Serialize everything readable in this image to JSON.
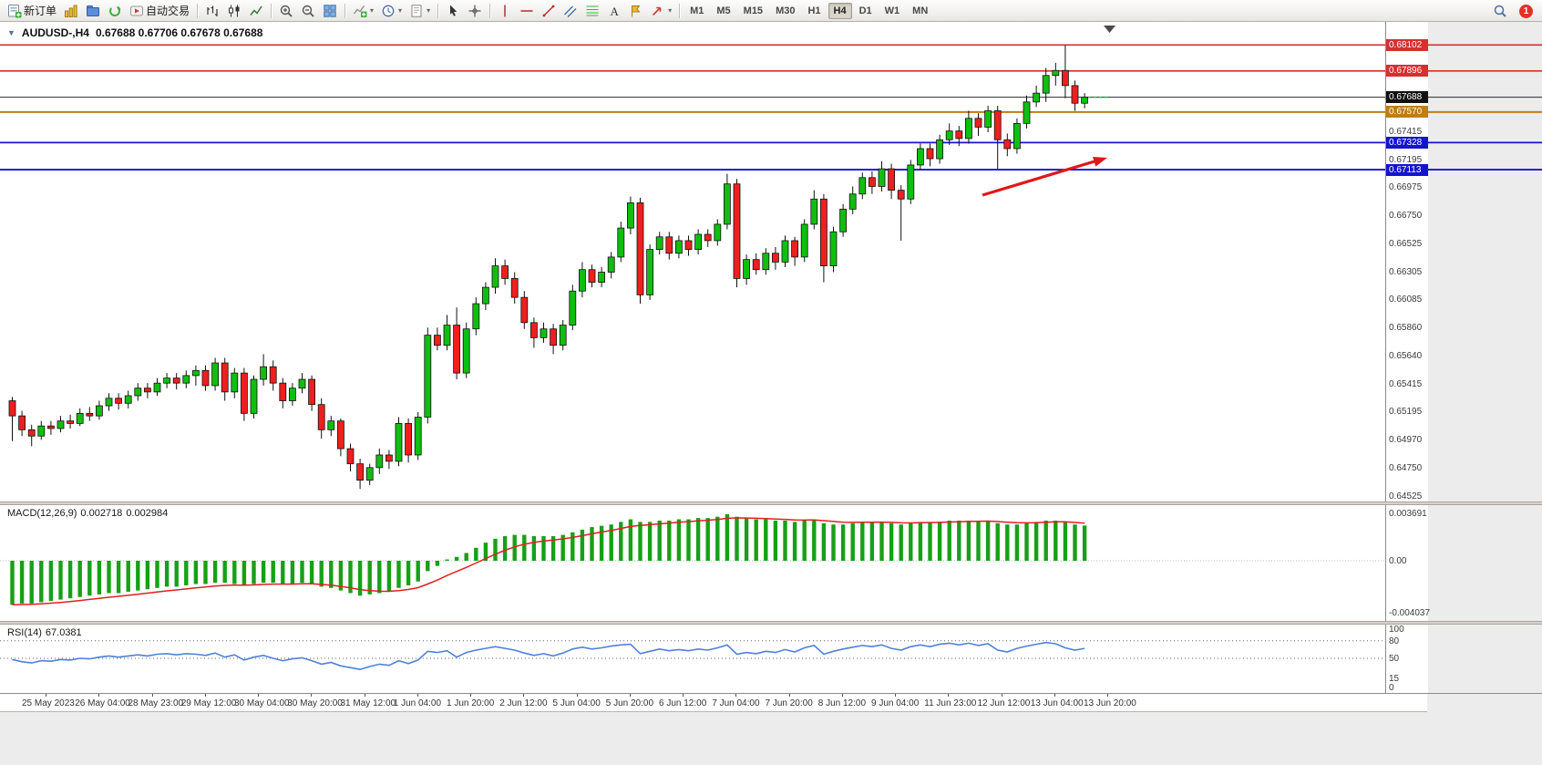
{
  "window": {
    "app": "MetaTrader",
    "chart_title": "AUDUSD-,H4"
  },
  "toolbar": {
    "buttons": [
      {
        "name": "new-order",
        "label": "新订单",
        "icon": "new-order-icon"
      },
      {
        "name": "charts",
        "icon": "charts-icon"
      },
      {
        "name": "profiles",
        "icon": "profiles-icon"
      },
      {
        "name": "refresh",
        "icon": "refresh-icon"
      },
      {
        "name": "auto-trading",
        "label": "自动交易",
        "icon": "autotrading-icon"
      },
      {
        "sep": true
      },
      {
        "name": "bar-chart",
        "icon": "bar-chart-icon"
      },
      {
        "name": "candlestick-chart",
        "icon": "candle-chart-icon"
      },
      {
        "name": "line-chart",
        "icon": "line-chart-icon"
      },
      {
        "sep": true
      },
      {
        "name": "zoom-in",
        "icon": "zoom-in-icon"
      },
      {
        "name": "zoom-out",
        "icon": "zoom-out-icon"
      },
      {
        "name": "tile-windows",
        "icon": "tile-windows-icon"
      },
      {
        "sep": true
      },
      {
        "name": "indicators",
        "icon": "indicators-icon",
        "dropdown": true
      },
      {
        "name": "periods",
        "icon": "clock-icon",
        "dropdown": true
      },
      {
        "name": "templates",
        "icon": "template-icon",
        "dropdown": true
      },
      {
        "sep": true
      },
      {
        "name": "cursor",
        "icon": "cursor-icon"
      },
      {
        "name": "crosshair",
        "icon": "crosshair-icon"
      },
      {
        "sep": true
      },
      {
        "name": "vertical-line",
        "icon": "vline-icon"
      },
      {
        "name": "horizontal-line",
        "icon": "hline-icon"
      },
      {
        "name": "trendline",
        "icon": "trendline-icon"
      },
      {
        "name": "equidistant-channel",
        "icon": "channel-icon"
      },
      {
        "name": "fibonacci",
        "icon": "fibo-icon"
      },
      {
        "name": "text",
        "icon": "text-icon"
      },
      {
        "name": "text-label",
        "icon": "label-icon"
      },
      {
        "name": "arrows",
        "icon": "shapes-icon",
        "dropdown": true
      },
      {
        "sep": true
      }
    ],
    "timeframes": [
      "M1",
      "M5",
      "M15",
      "M30",
      "H1",
      "H4",
      "D1",
      "W1",
      "MN"
    ],
    "active_timeframe": "H4",
    "notification_count": "1"
  },
  "chart": {
    "symbol": "AUDUSD-,H4",
    "ohlc_text": "0.67688 0.67706 0.67678 0.67688",
    "y_axis_labels": [
      "0.67415",
      "0.67195",
      "0.66975",
      "0.66750",
      "0.66525",
      "0.66305",
      "0.66085",
      "0.65860",
      "0.65640",
      "0.65415",
      "0.65195",
      "0.64970",
      "0.64750",
      "0.64525"
    ],
    "price_lines": [
      {
        "label": "0.68102",
        "price": 0.68102,
        "color": "#d62f2f",
        "width": 1.6
      },
      {
        "label": "0.67896",
        "price": 0.67896,
        "color": "#d62f2f",
        "width": 1.6
      },
      {
        "label": "0.67570",
        "price": 0.6757,
        "color": "#c07d10",
        "width": 2
      },
      {
        "label": "0.67328",
        "price": 0.67328,
        "color": "#1414cf",
        "width": 1.8
      },
      {
        "label": "0.67113",
        "price": 0.67113,
        "color": "#1414cf",
        "width": 1.8
      }
    ],
    "current_price": {
      "label": "0.67688",
      "price": 0.67688,
      "color": "#111111"
    },
    "x_axis_labels": [
      "25 May 2023",
      "26 May 04:00",
      "28 May 23:00",
      "29 May 12:00",
      "30 May 04:00",
      "30 May 20:00",
      "31 May 12:00",
      "1 Jun 04:00",
      "1 Jun 20:00",
      "2 Jun 12:00",
      "5 Jun 04:00",
      "5 Jun 20:00",
      "6 Jun 12:00",
      "7 Jun 04:00",
      "7 Jun 20:00",
      "8 Jun 12:00",
      "9 Jun 04:00",
      "11 Jun 23:00",
      "12 Jun 12:00",
      "13 Jun 04:00",
      "13 Jun 20:00"
    ]
  },
  "annotation": {
    "type": "arrow",
    "color": "#e01818"
  },
  "chart_data": {
    "type": "candlestick",
    "symbol": "AUDUSD",
    "timeframe": "H4",
    "y_range": [
      0.6451,
      0.68155
    ],
    "bull_color": "#0fbf0f",
    "bear_color": "#ef1f1f",
    "candles": [
      [
        0.6528,
        0.6531,
        0.6496,
        0.6516
      ],
      [
        0.6516,
        0.652,
        0.65,
        0.6505
      ],
      [
        0.6505,
        0.6509,
        0.6492,
        0.65
      ],
      [
        0.65,
        0.6512,
        0.6497,
        0.6508
      ],
      [
        0.6508,
        0.6512,
        0.6501,
        0.6506
      ],
      [
        0.6506,
        0.6516,
        0.6503,
        0.6512
      ],
      [
        0.6512,
        0.6517,
        0.6506,
        0.651
      ],
      [
        0.651,
        0.6522,
        0.6508,
        0.6518
      ],
      [
        0.6518,
        0.6523,
        0.6512,
        0.6516
      ],
      [
        0.6516,
        0.6528,
        0.6513,
        0.6524
      ],
      [
        0.6524,
        0.6534,
        0.652,
        0.653
      ],
      [
        0.653,
        0.6534,
        0.6521,
        0.6526
      ],
      [
        0.6526,
        0.6536,
        0.6522,
        0.6532
      ],
      [
        0.6532,
        0.6542,
        0.6528,
        0.6538
      ],
      [
        0.6538,
        0.6542,
        0.653,
        0.6535
      ],
      [
        0.6535,
        0.6546,
        0.6532,
        0.6542
      ],
      [
        0.6542,
        0.655,
        0.6538,
        0.6546
      ],
      [
        0.6546,
        0.655,
        0.6537,
        0.6542
      ],
      [
        0.6542,
        0.6552,
        0.6538,
        0.6548
      ],
      [
        0.6548,
        0.6556,
        0.654,
        0.6552
      ],
      [
        0.6552,
        0.6556,
        0.6536,
        0.654
      ],
      [
        0.654,
        0.6562,
        0.6536,
        0.6558
      ],
      [
        0.6558,
        0.6562,
        0.6528,
        0.6535
      ],
      [
        0.6535,
        0.6554,
        0.653,
        0.655
      ],
      [
        0.655,
        0.6554,
        0.6512,
        0.6518
      ],
      [
        0.6518,
        0.6548,
        0.6514,
        0.6545
      ],
      [
        0.6545,
        0.6565,
        0.654,
        0.6555
      ],
      [
        0.6555,
        0.656,
        0.6536,
        0.6542
      ],
      [
        0.6542,
        0.6546,
        0.6522,
        0.6528
      ],
      [
        0.6528,
        0.6542,
        0.6524,
        0.6538
      ],
      [
        0.6538,
        0.655,
        0.6534,
        0.6545
      ],
      [
        0.6545,
        0.6548,
        0.652,
        0.6525
      ],
      [
        0.6525,
        0.653,
        0.6498,
        0.6505
      ],
      [
        0.6505,
        0.6516,
        0.65,
        0.6512
      ],
      [
        0.6512,
        0.6514,
        0.6484,
        0.649
      ],
      [
        0.649,
        0.6494,
        0.6472,
        0.6478
      ],
      [
        0.6478,
        0.6482,
        0.6458,
        0.6465
      ],
      [
        0.6465,
        0.6478,
        0.6461,
        0.6475
      ],
      [
        0.6475,
        0.649,
        0.647,
        0.6485
      ],
      [
        0.6485,
        0.6489,
        0.6474,
        0.648
      ],
      [
        0.648,
        0.6515,
        0.6476,
        0.651
      ],
      [
        0.651,
        0.6514,
        0.6479,
        0.6485
      ],
      [
        0.6485,
        0.6519,
        0.6481,
        0.6515
      ],
      [
        0.6515,
        0.6586,
        0.651,
        0.658
      ],
      [
        0.658,
        0.6586,
        0.6568,
        0.6572
      ],
      [
        0.6572,
        0.6596,
        0.6568,
        0.6588
      ],
      [
        0.6588,
        0.6602,
        0.6545,
        0.655
      ],
      [
        0.655,
        0.659,
        0.6546,
        0.6585
      ],
      [
        0.6585,
        0.661,
        0.658,
        0.6605
      ],
      [
        0.6605,
        0.6622,
        0.66,
        0.6618
      ],
      [
        0.6618,
        0.6641,
        0.6613,
        0.6635
      ],
      [
        0.6635,
        0.664,
        0.662,
        0.6625
      ],
      [
        0.6625,
        0.663,
        0.6605,
        0.661
      ],
      [
        0.661,
        0.6615,
        0.6585,
        0.659
      ],
      [
        0.659,
        0.6594,
        0.657,
        0.6578
      ],
      [
        0.6578,
        0.659,
        0.6574,
        0.6585
      ],
      [
        0.6585,
        0.6589,
        0.6565,
        0.6572
      ],
      [
        0.6572,
        0.6592,
        0.6568,
        0.6588
      ],
      [
        0.6588,
        0.662,
        0.6584,
        0.6615
      ],
      [
        0.6615,
        0.6638,
        0.661,
        0.6632
      ],
      [
        0.6632,
        0.6636,
        0.6618,
        0.6622
      ],
      [
        0.6622,
        0.6634,
        0.6618,
        0.663
      ],
      [
        0.663,
        0.6646,
        0.6625,
        0.6642
      ],
      [
        0.6642,
        0.667,
        0.6638,
        0.6665
      ],
      [
        0.6665,
        0.669,
        0.666,
        0.6685
      ],
      [
        0.6685,
        0.6689,
        0.6605,
        0.6612
      ],
      [
        0.6612,
        0.6652,
        0.6608,
        0.6648
      ],
      [
        0.6648,
        0.6662,
        0.6644,
        0.6658
      ],
      [
        0.6658,
        0.6662,
        0.664,
        0.6645
      ],
      [
        0.6645,
        0.6659,
        0.6641,
        0.6655
      ],
      [
        0.6655,
        0.6659,
        0.6643,
        0.6648
      ],
      [
        0.6648,
        0.6664,
        0.6644,
        0.666
      ],
      [
        0.666,
        0.6664,
        0.665,
        0.6655
      ],
      [
        0.6655,
        0.6672,
        0.6651,
        0.6668
      ],
      [
        0.6668,
        0.6708,
        0.6664,
        0.67
      ],
      [
        0.67,
        0.6704,
        0.6618,
        0.6625
      ],
      [
        0.6625,
        0.6644,
        0.662,
        0.664
      ],
      [
        0.664,
        0.6645,
        0.6628,
        0.6632
      ],
      [
        0.6632,
        0.6649,
        0.6628,
        0.6645
      ],
      [
        0.6645,
        0.665,
        0.6632,
        0.6638
      ],
      [
        0.6638,
        0.6659,
        0.6634,
        0.6655
      ],
      [
        0.6655,
        0.6658,
        0.6635,
        0.6642
      ],
      [
        0.6642,
        0.6672,
        0.6638,
        0.6668
      ],
      [
        0.6668,
        0.6695,
        0.6664,
        0.6688
      ],
      [
        0.6688,
        0.6692,
        0.6622,
        0.6635
      ],
      [
        0.6635,
        0.6666,
        0.663,
        0.6662
      ],
      [
        0.6662,
        0.6684,
        0.6658,
        0.668
      ],
      [
        0.668,
        0.6698,
        0.6676,
        0.6692
      ],
      [
        0.6692,
        0.6709,
        0.6688,
        0.6705
      ],
      [
        0.6705,
        0.671,
        0.6692,
        0.6698
      ],
      [
        0.6698,
        0.6718,
        0.6694,
        0.6712
      ],
      [
        0.6712,
        0.6716,
        0.6688,
        0.6695
      ],
      [
        0.6695,
        0.6699,
        0.6655,
        0.6688
      ],
      [
        0.6688,
        0.6719,
        0.6684,
        0.6715
      ],
      [
        0.6715,
        0.6732,
        0.6711,
        0.6728
      ],
      [
        0.6728,
        0.6732,
        0.6714,
        0.672
      ],
      [
        0.672,
        0.6739,
        0.6716,
        0.6735
      ],
      [
        0.6735,
        0.6748,
        0.6731,
        0.6742
      ],
      [
        0.6742,
        0.6746,
        0.673,
        0.6736
      ],
      [
        0.6736,
        0.6758,
        0.6732,
        0.6752
      ],
      [
        0.6752,
        0.6756,
        0.6738,
        0.6745
      ],
      [
        0.6745,
        0.6762,
        0.6741,
        0.6758
      ],
      [
        0.6758,
        0.6762,
        0.6712,
        0.6735
      ],
      [
        0.6735,
        0.674,
        0.6722,
        0.6728
      ],
      [
        0.6728,
        0.6752,
        0.6724,
        0.6748
      ],
      [
        0.6748,
        0.677,
        0.6744,
        0.6765
      ],
      [
        0.6765,
        0.6778,
        0.6761,
        0.6772
      ],
      [
        0.6772,
        0.6792,
        0.6765,
        0.6786
      ],
      [
        0.6786,
        0.6796,
        0.6778,
        0.679
      ],
      [
        0.679,
        0.681,
        0.6768,
        0.6778
      ],
      [
        0.6778,
        0.6782,
        0.6758,
        0.6764
      ],
      [
        0.6764,
        0.6772,
        0.676,
        0.67688
      ]
    ]
  },
  "macd": {
    "label": "MACD(12,26,9)",
    "value_main": "0.002718",
    "value_signal": "0.002984",
    "scale_labels": [
      {
        "text": "0.003691",
        "value": 0.003691
      },
      {
        "text": "0.00",
        "value": 0
      },
      {
        "text": "-0.004037",
        "value": -0.004037
      }
    ],
    "histogram_color": "#17a017",
    "signal_color": "#e02020",
    "histogram": [
      -0.0034,
      -0.0033,
      -0.0033,
      -0.0032,
      -0.0031,
      -0.003,
      -0.0029,
      -0.0028,
      -0.0027,
      -0.0026,
      -0.0025,
      -0.0025,
      -0.0024,
      -0.0023,
      -0.0022,
      -0.0021,
      -0.002,
      -0.002,
      -0.0019,
      -0.0018,
      -0.0018,
      -0.0017,
      -0.0017,
      -0.0018,
      -0.0019,
      -0.0018,
      -0.0017,
      -0.0017,
      -0.0018,
      -0.0018,
      -0.0017,
      -0.0018,
      -0.002,
      -0.0021,
      -0.0023,
      -0.0025,
      -0.0027,
      -0.0026,
      -0.0025,
      -0.0024,
      -0.0021,
      -0.0019,
      -0.0016,
      -0.0008,
      -0.0004,
      0.0001,
      0.0003,
      0.0006,
      0.001,
      0.0014,
      0.0017,
      0.0019,
      0.002,
      0.002,
      0.0019,
      0.0019,
      0.0019,
      0.002,
      0.0022,
      0.0024,
      0.0026,
      0.0027,
      0.0028,
      0.003,
      0.0032,
      0.003,
      0.003,
      0.0031,
      0.0031,
      0.0032,
      0.0032,
      0.0033,
      0.0033,
      0.0034,
      0.0036,
      0.0034,
      0.0033,
      0.0032,
      0.0032,
      0.0031,
      0.0031,
      0.003,
      0.0031,
      0.0032,
      0.0029,
      0.0028,
      0.0028,
      0.0029,
      0.003,
      0.003,
      0.003,
      0.0029,
      0.0028,
      0.0029,
      0.003,
      0.003,
      0.003,
      0.0031,
      0.0031,
      0.0031,
      0.0031,
      0.0031,
      0.0029,
      0.0028,
      0.0028,
      0.0029,
      0.003,
      0.0031,
      0.0031,
      0.003,
      0.0028,
      0.00272
    ]
  },
  "rsi": {
    "label": "RSI(14)",
    "value": "67.0381",
    "line_color": "#4f81d8",
    "levels": [
      80,
      50
    ],
    "scale_labels": [
      {
        "text": "100",
        "value": 100
      },
      {
        "text": "80",
        "value": 80
      },
      {
        "text": "50",
        "value": 50
      },
      {
        "text": "15",
        "value": 15
      },
      {
        "text": "0",
        "value": 0
      }
    ],
    "values": [
      48,
      44,
      42,
      46,
      45,
      48,
      47,
      50,
      49,
      52,
      54,
      52,
      54,
      56,
      54,
      57,
      58,
      56,
      58,
      57,
      55,
      59,
      52,
      56,
      47,
      52,
      55,
      50,
      46,
      49,
      51,
      46,
      40,
      43,
      37,
      34,
      31,
      36,
      40,
      38,
      46,
      41,
      47,
      62,
      60,
      63,
      52,
      60,
      64,
      67,
      70,
      67,
      64,
      59,
      55,
      58,
      54,
      59,
      66,
      69,
      66,
      68,
      71,
      73,
      74,
      58,
      62,
      66,
      63,
      65,
      63,
      66,
      64,
      68,
      73,
      57,
      60,
      58,
      62,
      60,
      65,
      61,
      68,
      72,
      57,
      62,
      66,
      69,
      72,
      70,
      73,
      67,
      64,
      70,
      73,
      70,
      74,
      76,
      73,
      76,
      72,
      75,
      64,
      61,
      67,
      71,
      74,
      77,
      75,
      68,
      64,
      67
    ]
  }
}
